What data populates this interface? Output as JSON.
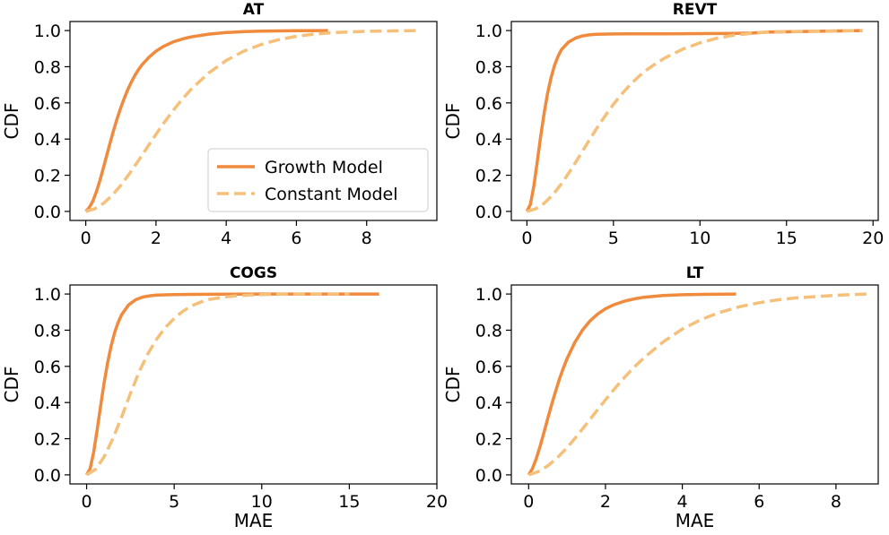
{
  "chart_data": [
    {
      "type": "line",
      "title": "AT",
      "xlabel": "",
      "ylabel": "CDF",
      "xlim": [
        -0.45,
        10.0
      ],
      "ylim": [
        -0.05,
        1.05
      ],
      "xticks": [
        0,
        2,
        4,
        6,
        8
      ],
      "yticks": [
        0.0,
        0.2,
        0.4,
        0.6,
        0.8,
        1.0
      ],
      "legend": "lower-right",
      "series": [
        {
          "name": "Growth Model",
          "color": "#f08a3c",
          "style": "solid",
          "x": [
            0,
            0.1,
            0.2,
            0.3,
            0.4,
            0.5,
            0.6,
            0.7,
            0.8,
            0.9,
            1.0,
            1.1,
            1.2,
            1.3,
            1.4,
            1.5,
            1.6,
            1.8,
            2.0,
            2.2,
            2.5,
            2.8,
            3.0,
            3.5,
            4.0,
            4.5,
            5.0,
            5.5,
            6.0,
            6.9
          ],
          "y": [
            0.0,
            0.021,
            0.056,
            0.108,
            0.17,
            0.24,
            0.312,
            0.384,
            0.453,
            0.517,
            0.576,
            0.628,
            0.675,
            0.716,
            0.752,
            0.783,
            0.81,
            0.853,
            0.886,
            0.911,
            0.938,
            0.956,
            0.965,
            0.98,
            0.989,
            0.994,
            0.997,
            0.998,
            0.999,
            1.0
          ]
        },
        {
          "name": "Constant Model",
          "color": "#f5c07a",
          "style": "dashed",
          "x": [
            0,
            0.25,
            0.5,
            0.75,
            1.0,
            1.25,
            1.5,
            1.75,
            2.0,
            2.25,
            2.5,
            2.75,
            3.0,
            3.5,
            4.0,
            4.5,
            5.0,
            5.5,
            6.0,
            6.5,
            7.0,
            8.0,
            9.5
          ],
          "y": [
            0.0,
            0.014,
            0.044,
            0.088,
            0.145,
            0.21,
            0.281,
            0.354,
            0.426,
            0.496,
            0.561,
            0.621,
            0.675,
            0.765,
            0.835,
            0.886,
            0.923,
            0.95,
            0.968,
            0.98,
            0.988,
            0.996,
            1.0
          ]
        }
      ]
    },
    {
      "type": "line",
      "title": "REVT",
      "xlabel": "",
      "ylabel": "CDF",
      "xlim": [
        -0.9,
        20.3
      ],
      "ylim": [
        -0.05,
        1.05
      ],
      "xticks": [
        0,
        5,
        10,
        15,
        20
      ],
      "yticks": [
        0.0,
        0.2,
        0.4,
        0.6,
        0.8,
        1.0
      ],
      "series": [
        {
          "name": "Growth Model",
          "color": "#f08a3c",
          "style": "solid",
          "x": [
            0,
            0.2,
            0.4,
            0.6,
            0.8,
            1.0,
            1.2,
            1.4,
            1.6,
            1.8,
            2.0,
            2.4,
            2.8,
            3.2,
            3.6,
            4.0,
            5.0,
            6.0,
            8.0,
            10.0,
            12.0,
            13.0,
            14.0,
            19.4
          ],
          "y": [
            0.0,
            0.038,
            0.14,
            0.275,
            0.418,
            0.547,
            0.655,
            0.742,
            0.808,
            0.858,
            0.895,
            0.936,
            0.958,
            0.97,
            0.976,
            0.979,
            0.981,
            0.982,
            0.982,
            0.983,
            0.984,
            0.986,
            0.992,
            1.0
          ]
        },
        {
          "name": "Constant Model",
          "color": "#f5c07a",
          "style": "dashed",
          "x": [
            0,
            0.5,
            1.0,
            1.5,
            2.0,
            2.5,
            3.0,
            3.5,
            4.0,
            4.5,
            5.0,
            5.5,
            6.0,
            6.5,
            7.0,
            7.5,
            8.0,
            9.0,
            10.0,
            11.0,
            12.0,
            14.0,
            19.4
          ],
          "y": [
            0.0,
            0.014,
            0.045,
            0.092,
            0.153,
            0.224,
            0.3,
            0.378,
            0.454,
            0.526,
            0.592,
            0.651,
            0.704,
            0.749,
            0.788,
            0.821,
            0.85,
            0.897,
            0.932,
            0.958,
            0.975,
            0.993,
            1.0
          ]
        }
      ]
    },
    {
      "type": "line",
      "title": "COGS",
      "xlabel": "MAE",
      "ylabel": "CDF",
      "xlim": [
        -0.95,
        20.0
      ],
      "ylim": [
        -0.05,
        1.05
      ],
      "xticks": [
        0,
        5,
        10,
        15,
        20
      ],
      "yticks": [
        0.0,
        0.2,
        0.4,
        0.6,
        0.8,
        1.0
      ],
      "series": [
        {
          "name": "Growth Model",
          "color": "#f08a3c",
          "style": "solid",
          "x": [
            0,
            0.2,
            0.4,
            0.6,
            0.8,
            1.0,
            1.2,
            1.4,
            1.6,
            1.8,
            2.0,
            2.4,
            2.8,
            3.2,
            3.6,
            4.0,
            5.0,
            6.0,
            8.0,
            10.0,
            16.7
          ],
          "y": [
            0.0,
            0.034,
            0.125,
            0.249,
            0.382,
            0.51,
            0.621,
            0.713,
            0.787,
            0.843,
            0.886,
            0.94,
            0.968,
            0.983,
            0.99,
            0.994,
            0.997,
            0.998,
            0.999,
            1.0,
            1.0
          ]
        },
        {
          "name": "Constant Model",
          "color": "#f5c07a",
          "style": "dashed",
          "x": [
            0,
            0.5,
            1.0,
            1.5,
            2.0,
            2.5,
            3.0,
            3.5,
            4.0,
            4.5,
            5.0,
            5.5,
            6.0,
            6.5,
            7.0,
            8.0,
            9.0,
            10.0,
            12.0,
            15.0
          ],
          "y": [
            0.0,
            0.03,
            0.1,
            0.2,
            0.32,
            0.45,
            0.57,
            0.67,
            0.75,
            0.815,
            0.865,
            0.905,
            0.935,
            0.955,
            0.97,
            0.985,
            0.993,
            0.997,
            1.0,
            1.0
          ]
        }
      ]
    },
    {
      "type": "line",
      "title": "LT",
      "xlabel": "MAE",
      "ylabel": "CDF",
      "xlim": [
        -0.45,
        9.1
      ],
      "ylim": [
        -0.05,
        1.05
      ],
      "xticks": [
        0,
        2,
        4,
        6,
        8
      ],
      "yticks": [
        0.0,
        0.2,
        0.4,
        0.6,
        0.8,
        1.0
      ],
      "series": [
        {
          "name": "Growth Model",
          "color": "#f08a3c",
          "style": "solid",
          "x": [
            0,
            0.1,
            0.2,
            0.3,
            0.4,
            0.5,
            0.6,
            0.7,
            0.8,
            0.9,
            1.0,
            1.2,
            1.4,
            1.6,
            1.8,
            2.0,
            2.2,
            2.5,
            2.8,
            3.0,
            3.5,
            4.0,
            4.5,
            5.4
          ],
          "y": [
            0.0,
            0.035,
            0.09,
            0.158,
            0.235,
            0.313,
            0.39,
            0.461,
            0.528,
            0.588,
            0.642,
            0.732,
            0.8,
            0.852,
            0.89,
            0.918,
            0.939,
            0.961,
            0.975,
            0.982,
            0.992,
            0.996,
            0.998,
            1.0
          ]
        },
        {
          "name": "Constant Model",
          "color": "#f5c07a",
          "style": "dashed",
          "x": [
            0,
            0.25,
            0.5,
            0.75,
            1.0,
            1.25,
            1.5,
            1.75,
            2.0,
            2.25,
            2.5,
            2.75,
            3.0,
            3.5,
            4.0,
            4.5,
            5.0,
            5.5,
            6.0,
            6.5,
            7.0,
            8.0,
            8.8
          ],
          "y": [
            0.0,
            0.018,
            0.05,
            0.095,
            0.15,
            0.213,
            0.28,
            0.348,
            0.415,
            0.479,
            0.54,
            0.596,
            0.647,
            0.735,
            0.806,
            0.86,
            0.9,
            0.93,
            0.952,
            0.968,
            0.979,
            0.993,
            1.0
          ]
        }
      ]
    }
  ]
}
